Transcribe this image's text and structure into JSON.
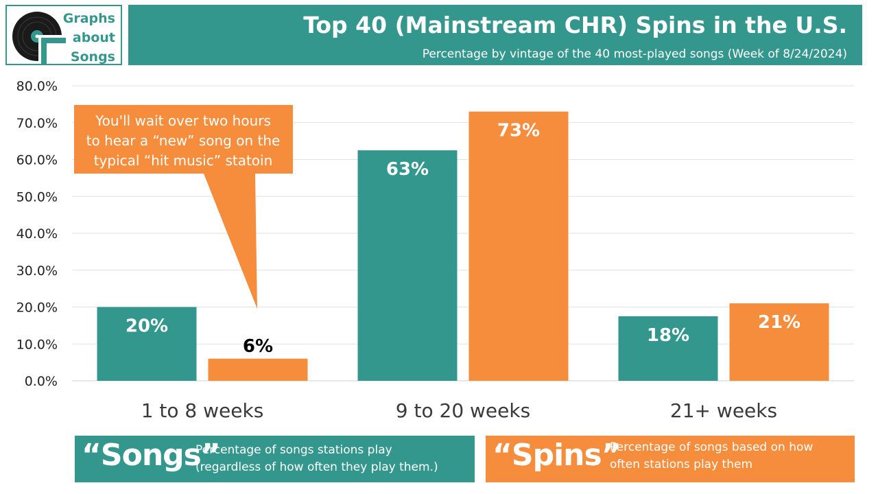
{
  "logo": {
    "line1": "Graphs",
    "line2": "about",
    "line3": "Songs",
    "icon": "vinyl-record-icon"
  },
  "header": {
    "title": "Top 40 (Mainstream CHR) Spins in the U.S.",
    "subtitle": "Percentage by vintage of the 40 most-played songs (Week of 8/24/2024)"
  },
  "chart_data": {
    "type": "bar",
    "categories": [
      "1 to 8 weeks",
      "9 to 20 weeks",
      "21+ weeks"
    ],
    "series": [
      {
        "name": "Songs",
        "values": [
          20,
          62.5,
          17.5
        ],
        "labels": [
          "20%",
          "63%",
          "18%"
        ],
        "color": "#34978e"
      },
      {
        "name": "Spins",
        "values": [
          6,
          73,
          21
        ],
        "labels": [
          "6%",
          "73%",
          "21%"
        ],
        "color": "#f68d3c"
      }
    ],
    "ylim": [
      0,
      80
    ],
    "yticks": [
      "0.0%",
      "10.0%",
      "20.0%",
      "30.0%",
      "40.0%",
      "50.0%",
      "60.0%",
      "70.0%",
      "80.0%"
    ],
    "grid": true,
    "annotation": {
      "lines": [
        "You'll wait over two hours",
        "to hear a “new” song on the",
        "typical “hit music” statoin"
      ],
      "points_to": "1 to 8 weeks Spins"
    }
  },
  "legend": {
    "songs": {
      "title": "“Songs”",
      "line1": "Percentage of songs stations play",
      "line2": "(regardless of how often they play them.)"
    },
    "spins": {
      "title": "“Spins”",
      "line1": "Percentage of songs based on how",
      "line2": "often stations play them"
    }
  },
  "colors": {
    "teal": "#34978e",
    "orange": "#f68d3c"
  }
}
